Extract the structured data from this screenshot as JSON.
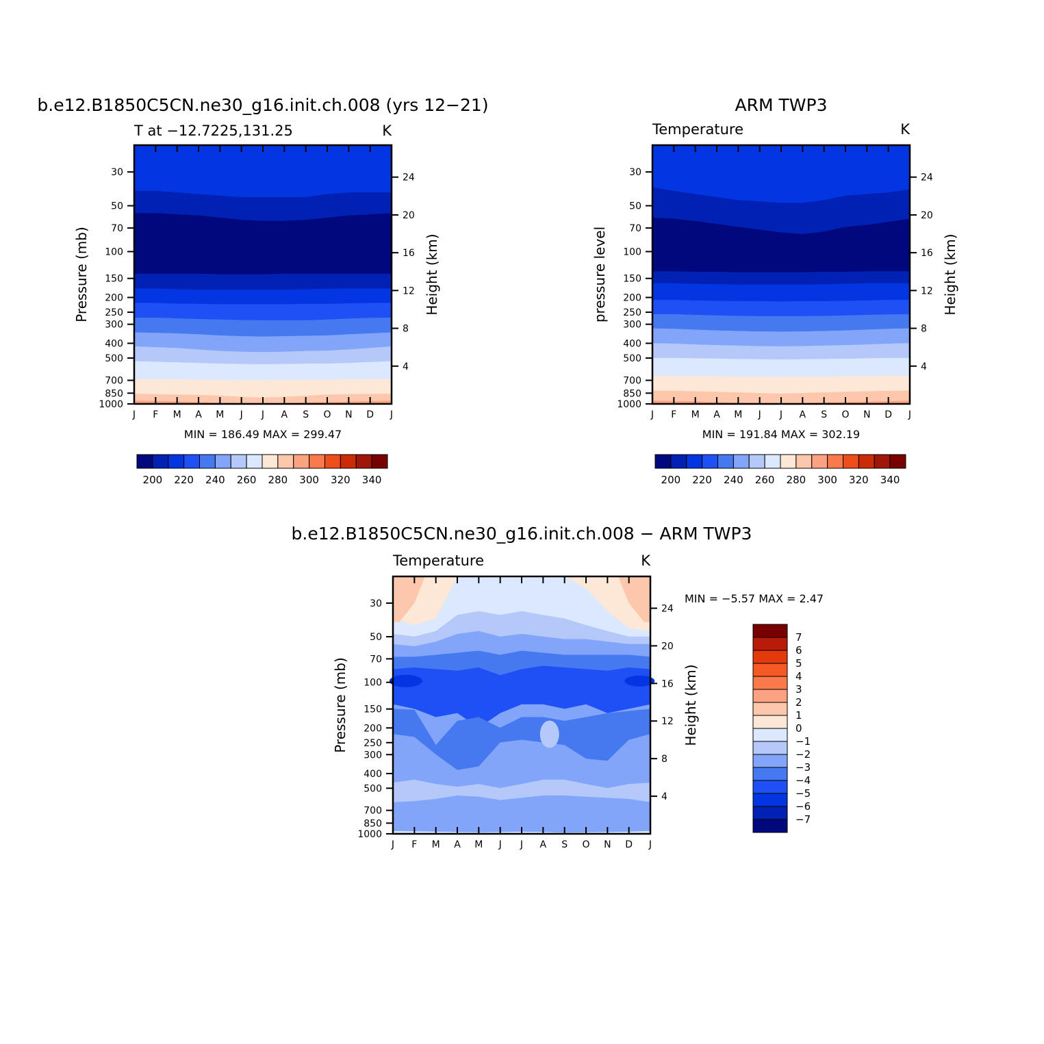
{
  "chart_data": [
    {
      "type": "heatmap",
      "id": "p1",
      "title": "b.e12.B1850C5CN.ne30_g16.init.ch.008 (yrs 12−21)",
      "left_string": "T at −12.7225,131.25",
      "right_string": "K",
      "ylabel": "Pressure (mb)",
      "y2label": "Height (km)",
      "x_ticks": [
        "J",
        "F",
        "M",
        "A",
        "M",
        "J",
        "J",
        "A",
        "S",
        "O",
        "N",
        "D",
        "J"
      ],
      "y_ticks": [
        30,
        50,
        70,
        100,
        150,
        200,
        250,
        300,
        400,
        500,
        700,
        850,
        1000
      ],
      "y_ticks_label": [
        "30",
        "50",
        "70",
        "100",
        "150",
        "200",
        "250",
        "300",
        "400",
        "500",
        "700",
        "850",
        "1000"
      ],
      "y2_ticks": [
        "24",
        "20",
        "16",
        "12",
        "8",
        "4"
      ],
      "ylim": [
        20,
        1000
      ],
      "stats_text": "MIN = 186.49 MAX = 299.47",
      "colorbar_labels": [
        "200",
        "220",
        "240",
        "260",
        "280",
        "300",
        "320",
        "340"
      ],
      "colorbar_colors": [
        "#00087e",
        "#0021b3",
        "#0336e0",
        "#1e50f5",
        "#4678f0",
        "#82a5fa",
        "#b4c8fa",
        "#dce8fd",
        "#fde8d8",
        "#fcc7ab",
        "#fba281",
        "#fa7a4e",
        "#ee4d1c",
        "#cc2b07",
        "#a0160a",
        "#780000"
      ],
      "bands_top_pressure": {
        "month_index": [
          0,
          1,
          2,
          3,
          4,
          5,
          6,
          7,
          8,
          9,
          10,
          11,
          12
        ],
        "levels": [
          {
            "color": "#0336e0",
            "p": [
              20,
              20,
              20,
              20,
              20,
              20,
              20,
              20,
              20,
              20,
              20,
              20,
              20
            ]
          },
          {
            "color": "#0021b3",
            "p": [
              40,
              40,
              41,
              42,
              43,
              44,
              44,
              44,
              44,
              42,
              41,
              41,
              41
            ]
          },
          {
            "color": "#00087e",
            "p": [
              56,
              56,
              57,
              58,
              60,
              62,
              63,
              63,
              62,
              60,
              58,
              57,
              56
            ]
          },
          {
            "color": "#0021b3",
            "p": [
              140,
              140,
              140,
              140,
              141,
              141,
              141,
              140,
              140,
              140,
              140,
              140,
              140
            ]
          },
          {
            "color": "#0336e0",
            "p": [
              175,
              175,
              177,
              178,
              178,
              178,
              178,
              178,
              177,
              176,
              175,
              175,
              175
            ]
          },
          {
            "color": "#1e50f5",
            "p": [
              218,
              218,
              220,
              221,
              222,
              222,
              222,
              222,
              221,
              221,
              219,
              218,
              218
            ]
          },
          {
            "color": "#4678f0",
            "p": [
              272,
              272,
              275,
              278,
              280,
              282,
              283,
              283,
              283,
              280,
              276,
              273,
              272
            ]
          },
          {
            "color": "#82a5fa",
            "p": [
              340,
              342,
              345,
              350,
              356,
              360,
              362,
              360,
              358,
              356,
              350,
              345,
              340
            ]
          },
          {
            "color": "#b4c8fa",
            "p": [
              420,
              425,
              430,
              440,
              450,
              455,
              458,
              455,
              450,
              448,
              440,
              430,
              420
            ]
          },
          {
            "color": "#dce8fd",
            "p": [
              525,
              530,
              535,
              540,
              545,
              548,
              550,
              548,
              545,
              545,
              540,
              532,
              525
            ]
          },
          {
            "color": "#fde8d8",
            "p": [
              690,
              692,
              692,
              695,
              698,
              700,
              700,
              698,
              696,
              695,
              692,
              690,
              690
            ]
          },
          {
            "color": "#fcc7ab",
            "p": [
              860,
              865,
              870,
              875,
              885,
              900,
              910,
              900,
              885,
              870,
              865,
              862,
              860
            ]
          }
        ]
      }
    },
    {
      "type": "heatmap",
      "id": "p2",
      "title": "ARM TWP3",
      "left_string": "Temperature",
      "right_string": "K",
      "ylabel": "pressure level",
      "y2label": "Height (km)",
      "x_ticks": [
        "J",
        "F",
        "M",
        "A",
        "M",
        "J",
        "J",
        "A",
        "S",
        "O",
        "N",
        "D",
        "J"
      ],
      "y_ticks": [
        30,
        50,
        70,
        100,
        150,
        200,
        250,
        300,
        400,
        500,
        700,
        850,
        1000
      ],
      "y_ticks_label": [
        "30",
        "50",
        "70",
        "100",
        "150",
        "200",
        "250",
        "300",
        "400",
        "500",
        "700",
        "850",
        "1000"
      ],
      "y2_ticks": [
        "24",
        "20",
        "16",
        "12",
        "8",
        "4"
      ],
      "ylim": [
        20,
        1000
      ],
      "stats_text": "MIN = 191.84 MAX = 302.19",
      "colorbar_labels": [
        "200",
        "220",
        "240",
        "260",
        "280",
        "300",
        "320",
        "340"
      ],
      "colorbar_colors": [
        "#00087e",
        "#0021b3",
        "#0336e0",
        "#1e50f5",
        "#4678f0",
        "#82a5fa",
        "#b4c8fa",
        "#dce8fd",
        "#fde8d8",
        "#fcc7ab",
        "#fba281",
        "#fa7a4e",
        "#ee4d1c",
        "#cc2b07",
        "#a0160a",
        "#780000"
      ],
      "bands_top_pressure": {
        "month_index": [
          0,
          1,
          2,
          3,
          4,
          5,
          6,
          7,
          8,
          9,
          10,
          11,
          12
        ],
        "levels": [
          {
            "color": "#0336e0",
            "p": [
              20,
              20,
              20,
              20,
              20,
              20,
              20,
              20,
              20,
              20,
              20,
              20,
              20
            ]
          },
          {
            "color": "#0021b3",
            "p": [
              38,
              40,
              42,
              44,
              46,
              47,
              48,
              48,
              46,
              43,
              42,
              41,
              39
            ]
          },
          {
            "color": "#00087e",
            "p": [
              60,
              61,
              63,
              66,
              69,
              72,
              75,
              77,
              74,
              69,
              67,
              64,
              61
            ]
          },
          {
            "color": "#0021b3",
            "p": [
              135,
              135,
              136,
              136,
              137,
              137,
              137,
              137,
              136,
              136,
              135,
              135,
              135
            ]
          },
          {
            "color": "#0336e0",
            "p": [
              162,
              162,
              163,
              164,
              165,
              165,
              165,
              165,
              164,
              163,
              162,
              162,
              162
            ]
          },
          {
            "color": "#1e50f5",
            "p": [
              208,
              208,
              210,
              211,
              212,
              212,
              213,
              212,
              212,
              211,
              210,
              208,
              208
            ]
          },
          {
            "color": "#4678f0",
            "p": [
              258,
              258,
              261,
              263,
              265,
              266,
              266,
              266,
              265,
              263,
              261,
              259,
              258
            ]
          },
          {
            "color": "#82a5fa",
            "p": [
              320,
              322,
              326,
              330,
              333,
              335,
              336,
              335,
              333,
              330,
              326,
              322,
              320
            ]
          },
          {
            "color": "#b4c8fa",
            "p": [
              400,
              403,
              408,
              412,
              415,
              418,
              420,
              418,
              415,
              412,
              408,
              403,
              400
            ]
          },
          {
            "color": "#dce8fd",
            "p": [
              500,
              500,
              503,
              505,
              508,
              510,
              512,
              510,
              508,
              506,
              503,
              500,
              500
            ]
          },
          {
            "color": "#fde8d8",
            "p": [
              655,
              655,
              658,
              660,
              663,
              666,
              668,
              666,
              663,
              660,
              658,
              655,
              655
            ]
          },
          {
            "color": "#fcc7ab",
            "p": [
              820,
              822,
              828,
              835,
              842,
              850,
              858,
              850,
              842,
              835,
              828,
              822,
              820
            ]
          }
        ]
      }
    },
    {
      "type": "heatmap",
      "id": "p3",
      "title": "b.e12.B1850C5CN.ne30_g16.init.ch.008 − ARM TWP3",
      "left_string": "Temperature",
      "right_string": "K",
      "ylabel": "Pressure (mb)",
      "y2label": "Height (km)",
      "x_ticks": [
        "J",
        "F",
        "M",
        "A",
        "M",
        "J",
        "J",
        "A",
        "S",
        "O",
        "N",
        "D",
        "J"
      ],
      "y_ticks": [
        30,
        50,
        70,
        100,
        150,
        200,
        250,
        300,
        400,
        500,
        700,
        850,
        1000
      ],
      "y_ticks_label": [
        "30",
        "50",
        "70",
        "100",
        "150",
        "200",
        "250",
        "300",
        "400",
        "500",
        "700",
        "850",
        "1000"
      ],
      "y2_ticks": [
        "24",
        "20",
        "16",
        "12",
        "8",
        "4"
      ],
      "ylim": [
        20,
        1000
      ],
      "stats_text": "MIN =   −5.57 MAX =    2.47",
      "colorbar_labels": [
        "7",
        "6",
        "5",
        "4",
        "3",
        "2",
        "1",
        "0",
        "−1",
        "−2",
        "−3",
        "−4",
        "−5",
        "−6",
        "−7"
      ],
      "colorbar_colors": [
        "#780000",
        "#b81c08",
        "#e23a0b",
        "#f55a25",
        "#fa7a4e",
        "#fba281",
        "#fcc7ab",
        "#fde8d8",
        "#dce8fd",
        "#b4c8fa",
        "#82a5fa",
        "#4678f0",
        "#1e50f5",
        "#0336e0",
        "#0021b3",
        "#00087e"
      ],
      "diff_fields": [
        {
          "level": "-4",
          "color": "#1e50f5",
          "pts": [
            [
              0,
              90
            ],
            [
              3,
              90
            ],
            [
              3,
              120
            ],
            [
              0,
              120
            ]
          ]
        },
        {
          "level": "-3",
          "color": "#82a5fa",
          "pts": [
            [
              1,
              160
            ],
            [
              3,
              160
            ],
            [
              3,
              500
            ],
            [
              1,
              500
            ]
          ]
        }
      ]
    }
  ]
}
